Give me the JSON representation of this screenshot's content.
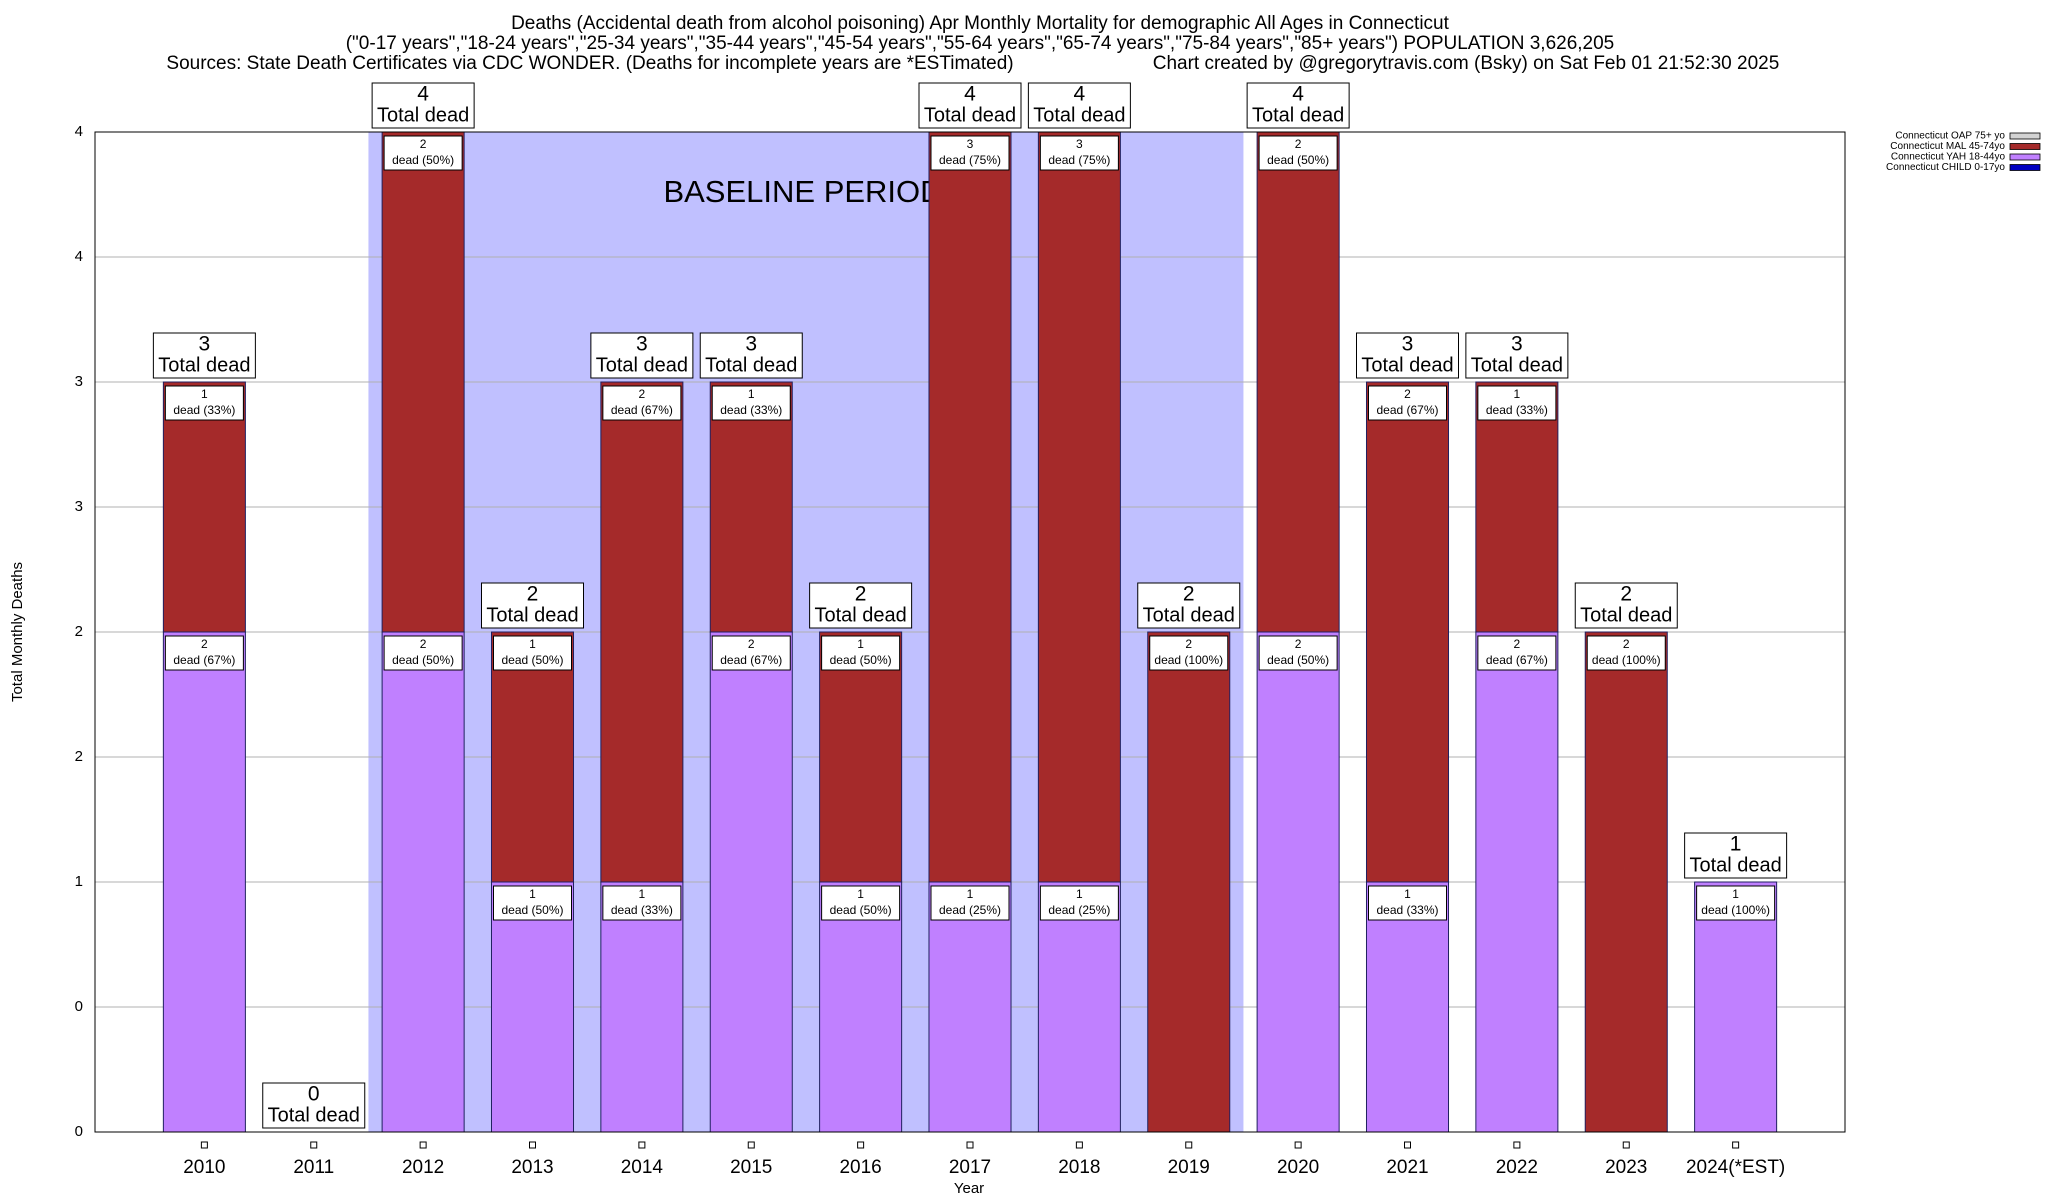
{
  "chart_data": {
    "type": "stacked_bar",
    "title": "Deaths (Accidental death from alcohol poisoning) Apr Monthly Mortality for demographic All Ages in Connecticut",
    "subtitle": "(\"0-17 years\",\"18-24 years\",\"25-34 years\",\"35-44 years\",\"45-54 years\",\"55-64 years\",\"65-74 years\",\"75-84 years\",\"85+ years\") POPULATION 3,626,205",
    "source": "Sources: State Death Certificates via CDC WONDER. (Deaths for incomplete years are *ESTimated)",
    "credit": "Chart created by @gregorytravis.com (Bsky) on Sat Feb 01 21:52:30 2025",
    "x_label": "Year",
    "y_label": "Total Monthly Deaths",
    "categories": [
      "2010",
      "2011",
      "2012",
      "2013",
      "2014",
      "2015",
      "2016",
      "2017",
      "2018",
      "2019",
      "2020",
      "2021",
      "2022",
      "2023",
      "2024(*EST)"
    ],
    "series": [
      {
        "name": "Connecticut CHILD 0-17yo",
        "color": "#0000c0",
        "values": [
          0,
          0,
          0,
          0,
          0,
          0,
          0,
          0,
          0,
          0,
          0,
          0,
          0,
          0,
          0
        ]
      },
      {
        "name": "Connecticut YAH 18-44yo",
        "color": "#c080ff",
        "values": [
          2,
          0,
          2,
          1,
          1,
          2,
          1,
          1,
          1,
          0,
          2,
          1,
          2,
          0,
          1
        ],
        "value_labels": [
          "dead (67%)",
          null,
          "dead (50%)",
          "dead (50%)",
          "dead (33%)",
          "dead (67%)",
          "dead (50%)",
          "dead (25%)",
          "dead (25%)",
          null,
          "dead (50%)",
          "dead (33%)",
          "dead (67%)",
          null,
          "dead (100%)"
        ]
      },
      {
        "name": "Connecticut MAL 45-74yo",
        "color": "#a52a2a",
        "values": [
          1,
          0,
          2,
          1,
          2,
          1,
          1,
          3,
          3,
          2,
          2,
          2,
          1,
          2,
          0
        ],
        "value_labels": [
          "dead (33%)",
          null,
          "dead (50%)",
          "dead (50%)",
          "dead (67%)",
          "dead (33%)",
          "dead (50%)",
          "dead (75%)",
          "dead (75%)",
          "dead (100%)",
          "dead (50%)",
          "dead (67%)",
          "dead (33%)",
          "dead (100%)",
          null
        ]
      },
      {
        "name": "Connecticut OAP 75+ yo",
        "color": "#d3d3d3",
        "values": [
          0,
          0,
          0,
          0,
          0,
          0,
          0,
          0,
          0,
          0,
          0,
          0,
          0,
          0,
          0
        ]
      }
    ],
    "totals": [
      3,
      0,
      4,
      2,
      3,
      3,
      2,
      4,
      4,
      2,
      4,
      3,
      3,
      2,
      1
    ],
    "total_label": "Total dead",
    "baseline": {
      "label": "BASELINE PERIOD",
      "start": "2012",
      "end": "2019",
      "color": "#c0c0ff"
    },
    "ylim": [
      0,
      4
    ],
    "yticks": [
      0,
      {
        "value": 0.5,
        "label": "0"
      },
      1,
      {
        "value": 1.5,
        "label": "2"
      },
      2,
      {
        "value": 2.5,
        "label": "3"
      },
      3,
      {
        "value": 3.5,
        "label": "4"
      },
      4
    ],
    "grid": true,
    "legend": "top-right"
  }
}
